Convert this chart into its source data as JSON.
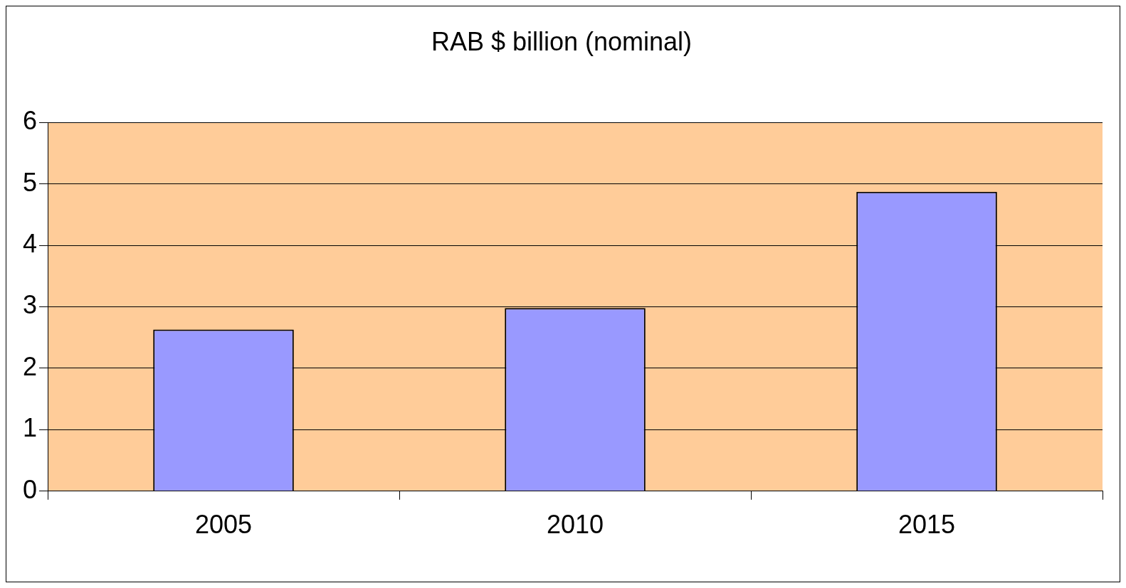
{
  "chart_data": {
    "type": "bar",
    "title": "RAB $ billion (nominal)",
    "categories": [
      "2005",
      "2010",
      "2015"
    ],
    "values": [
      2.63,
      2.98,
      4.87
    ],
    "color": "#9999ff",
    "ylim": [
      0,
      6
    ],
    "yticks": [
      0,
      1,
      2,
      3,
      4,
      5,
      6
    ],
    "grid": "y"
  }
}
